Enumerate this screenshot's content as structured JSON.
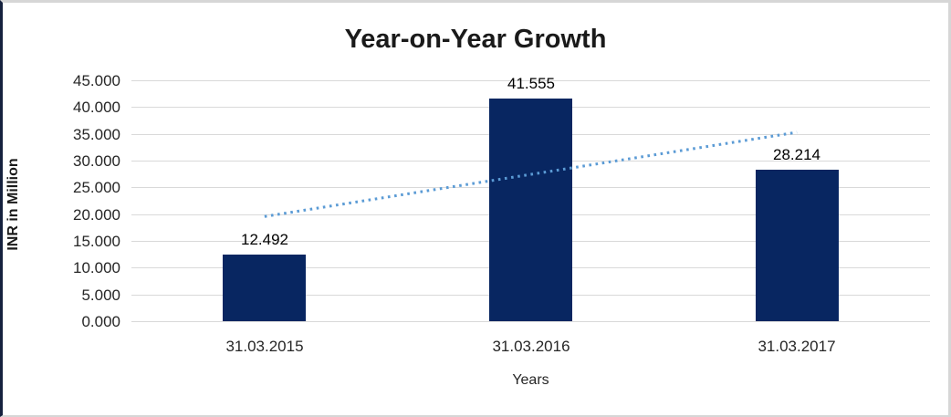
{
  "chart_data": {
    "type": "bar",
    "title": "Year-on-Year Growth",
    "categories": [
      "31.03.2015",
      "31.03.2016",
      "31.03.2017"
    ],
    "values": [
      12.492,
      41.555,
      28.214
    ],
    "value_labels": [
      "12.492",
      "41.555",
      "28.214"
    ],
    "xlabel": "Years",
    "ylabel": "INR in Million",
    "ylim": [
      0,
      45
    ],
    "ytick_interval": 5,
    "ytick_labels": [
      "45.000",
      "40.000",
      "35.000",
      "30.000",
      "25.000",
      "20.000",
      "15.000",
      "10.000",
      "5.000",
      "0.000"
    ],
    "grid": true,
    "legend_position": "none",
    "trendline": {
      "type": "linear",
      "style": "dotted"
    },
    "colors": {
      "bar": "#082661",
      "trendline": "#5b9bd5",
      "gridline": "#d9d9d9",
      "tick_text": "#262626",
      "title_text": "#1a1a1a",
      "frame_border": "#d6d6d6",
      "frame_left_edge": "#15213e"
    }
  }
}
